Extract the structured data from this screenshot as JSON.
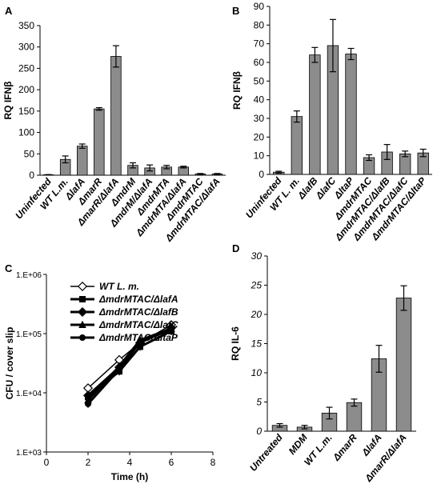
{
  "chart_data": [
    {
      "panel": "A",
      "type": "bar",
      "ylabel": "RQ IFNβ",
      "ylim": [
        0,
        350
      ],
      "yticks": [
        0,
        50,
        100,
        150,
        200,
        250,
        300,
        350
      ],
      "categories": [
        "Uninfected",
        "WT L.m.",
        "ΔlafA",
        "ΔmarR",
        "ΔmarR/ΔlafA",
        "ΔmdrM",
        "ΔmdrM/ΔlafA",
        "ΔmdrMTA",
        "ΔmdrMTA/ΔlafA",
        "ΔmdrMTAC",
        "ΔmdrMTAC/ΔlafA"
      ],
      "values": [
        1,
        37,
        68,
        155,
        278,
        23,
        17,
        19,
        19,
        3,
        3
      ],
      "errors": [
        0.5,
        8,
        5,
        3,
        25,
        6,
        7,
        4,
        2,
        1,
        1
      ]
    },
    {
      "panel": "B",
      "type": "bar",
      "ylabel": "RQ IFNβ",
      "ylim": [
        0,
        90
      ],
      "yticks": [
        0,
        10,
        20,
        30,
        40,
        50,
        60,
        70,
        80,
        90
      ],
      "categories": [
        "Uninfected",
        "WT L. m.",
        "ΔlafB",
        "ΔlafC",
        "ΔltaP",
        "ΔmdrMTAC",
        "ΔmdrMTAC/ΔlafB",
        "ΔmdrMTAC/ΔlafC",
        "ΔmdrMTAC/ΔltaP"
      ],
      "values": [
        1.2,
        31,
        64,
        69,
        64.5,
        9,
        12,
        11,
        11.5
      ],
      "errors": [
        0.5,
        3,
        4,
        14,
        3,
        1.5,
        4,
        1.5,
        2
      ]
    },
    {
      "panel": "C",
      "type": "line",
      "xlabel": "Time (h)",
      "ylabel": "CFU / cover slip",
      "yscale": "log",
      "xlim": [
        0,
        8
      ],
      "xticks": [
        0,
        2,
        4,
        6,
        8
      ],
      "ylim": [
        1000,
        1000000
      ],
      "yticks": [
        1000,
        10000,
        100000,
        1000000
      ],
      "yticklabels": [
        "1.E+03",
        "1.E+04",
        "1.E+05",
        "1.E+06"
      ],
      "series": [
        {
          "name": "WT L. m.",
          "marker": "diamond-open",
          "x": [
            2,
            3.5,
            4.5,
            6
          ],
          "y": [
            12000,
            36000,
            70000,
            140000
          ]
        },
        {
          "name": "ΔmdrMTAC/ΔlafA",
          "marker": "square",
          "x": [
            2,
            3.5,
            4.5,
            6
          ],
          "y": [
            8500,
            23000,
            60000,
            110000
          ]
        },
        {
          "name": "ΔmdrMTAC/ΔlafB",
          "marker": "diamond",
          "x": [
            2,
            3.5,
            4.5,
            6
          ],
          "y": [
            9000,
            27000,
            70000,
            125000
          ]
        },
        {
          "name": "ΔmdrMTAC/ΔlafC",
          "marker": "triangle",
          "x": [
            2,
            3.5,
            4.5,
            6
          ],
          "y": [
            7500,
            28000,
            78000,
            120000
          ]
        },
        {
          "name": "ΔmdrMTAC/ΔltaP",
          "marker": "circle",
          "x": [
            2,
            3.5,
            4.5,
            6
          ],
          "y": [
            6500,
            25000,
            72000,
            118000
          ]
        }
      ]
    },
    {
      "panel": "D",
      "type": "bar",
      "ylabel": "RQ IL-6",
      "ylim": [
        0,
        30
      ],
      "yticks": [
        0,
        5,
        10,
        15,
        20,
        25,
        30
      ],
      "categories": [
        "Untreated",
        "MDM",
        "WT L.m.",
        "ΔmarR",
        "ΔlafA",
        "ΔmarR/ΔlafA"
      ],
      "values": [
        1,
        0.7,
        3.1,
        4.9,
        12.4,
        22.8
      ],
      "errors": [
        0.3,
        0.3,
        1,
        0.6,
        2.3,
        2.1
      ]
    }
  ]
}
